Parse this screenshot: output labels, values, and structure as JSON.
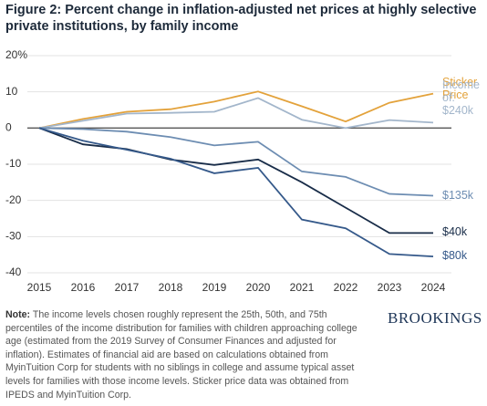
{
  "chart_data": {
    "type": "line",
    "title": "Figure 2: Percent change in inflation-adjusted net prices at highly selective private institutions, by family income",
    "x": [
      2015,
      2016,
      2017,
      2018,
      2019,
      2020,
      2021,
      2022,
      2023,
      2024
    ],
    "xlim": [
      2015,
      2024
    ],
    "xticks": [
      2015,
      2016,
      2017,
      2018,
      2019,
      2020,
      2021,
      2022,
      2023,
      2024
    ],
    "ylim": [
      -40,
      20
    ],
    "yticks": [
      {
        "value": 20,
        "label": "20%"
      },
      10,
      0,
      -10,
      -20,
      -30,
      -40
    ],
    "grid": true,
    "series": [
      {
        "name": "Sticker Price",
        "color": "#e3a23b",
        "values": [
          0,
          2.5,
          4.5,
          5.2,
          7.3,
          10.1,
          6,
          1.8,
          7,
          9.5
        ]
      },
      {
        "name": "$240k",
        "color": "#a3b6cb",
        "annotation": "Income of:",
        "values": [
          0,
          2,
          4,
          4.2,
          4.5,
          8.3,
          2.3,
          0,
          2.2,
          1.5
        ]
      },
      {
        "name": "$135k",
        "color": "#6d8db2",
        "values": [
          0,
          -0.3,
          -1,
          -2.5,
          -4.8,
          -3.8,
          -12,
          -13.5,
          -18.2,
          -18.7
        ]
      },
      {
        "name": "$40k",
        "color": "#182c48",
        "values": [
          0,
          -4.5,
          -5.8,
          -8.7,
          -10.2,
          -8.7,
          -15,
          -22,
          -29,
          -29
        ]
      },
      {
        "name": "$80k",
        "color": "#35598a",
        "values": [
          0,
          -3.5,
          -6,
          -8.5,
          -12.5,
          -11,
          -25.3,
          -27.7,
          -34.8,
          -35.5
        ]
      }
    ],
    "note_label": "Note:",
    "note": "The income levels chosen roughly represent the 25th, 50th, and 75th percentiles of the income distribution for families with children approaching college age (estimated from the 2019 Survey of Consumer Finances and adjusted for inflation). Estimates of financial aid are based on calculations obtained from MyinTuition Corp for students with no siblings in college and assume typical asset levels for families with those income levels. Sticker price data was obtained from IPEDS and MyinTuition Corp.",
    "source": "BROOKINGS"
  }
}
